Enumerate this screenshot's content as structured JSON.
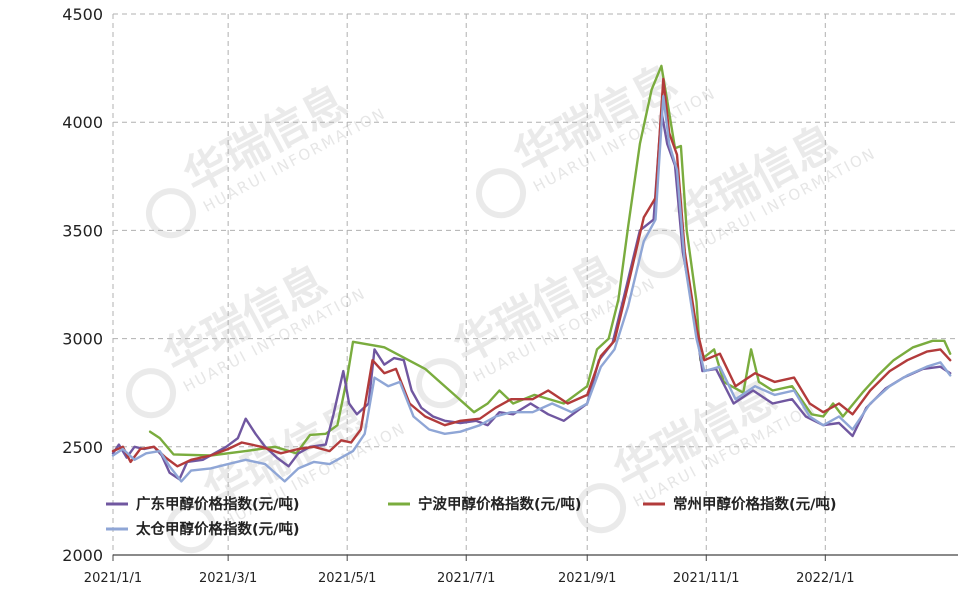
{
  "chart_data": {
    "type": "line",
    "title": "",
    "xlabel": "",
    "ylabel": "",
    "ylim": [
      2000,
      4500
    ],
    "xlim": [
      "2021-01-01",
      "2022-03-10"
    ],
    "yticks": [
      "2000",
      "2500",
      "3000",
      "3500",
      "4000",
      "4500"
    ],
    "xticks": [
      {
        "date": "2021-01-01",
        "label": "2021/1/1"
      },
      {
        "date": "2021-03-01",
        "label": "2021/3/1"
      },
      {
        "date": "2021-05-01",
        "label": "2021/5/1"
      },
      {
        "date": "2021-07-01",
        "label": "2021/7/1"
      },
      {
        "date": "2021-09-01",
        "label": "2021/9/1"
      },
      {
        "date": "2021-11-01",
        "label": "2021/11/1"
      },
      {
        "date": "2022-01-01",
        "label": "2022/1/1"
      }
    ],
    "grid": true,
    "legend_position": "bottom-left",
    "watermark": {
      "main": "华瑞信息",
      "sub": "HUARUI INFORMATION"
    },
    "series": [
      {
        "name": "宁波甲醇价格指数(元/吨)",
        "color": "#7aac3e",
        "points": [
          [
            "2021-01-20",
            2570
          ],
          [
            "2021-01-25",
            2540
          ],
          [
            "2021-02-01",
            2465
          ],
          [
            "2021-02-20",
            2460
          ],
          [
            "2021-03-10",
            2480
          ],
          [
            "2021-03-25",
            2500
          ],
          [
            "2021-04-05",
            2470
          ],
          [
            "2021-04-12",
            2555
          ],
          [
            "2021-04-20",
            2560
          ],
          [
            "2021-04-26",
            2600
          ],
          [
            "2021-05-01",
            2820
          ],
          [
            "2021-05-04",
            2985
          ],
          [
            "2021-05-20",
            2960
          ],
          [
            "2021-06-10",
            2860
          ],
          [
            "2021-06-25",
            2740
          ],
          [
            "2021-07-05",
            2660
          ],
          [
            "2021-07-12",
            2700
          ],
          [
            "2021-07-18",
            2760
          ],
          [
            "2021-07-25",
            2700
          ],
          [
            "2021-08-05",
            2740
          ],
          [
            "2021-08-20",
            2700
          ],
          [
            "2021-09-01",
            2780
          ],
          [
            "2021-09-06",
            2950
          ],
          [
            "2021-09-12",
            3000
          ],
          [
            "2021-09-17",
            3180
          ],
          [
            "2021-09-22",
            3520
          ],
          [
            "2021-09-28",
            3900
          ],
          [
            "2021-10-04",
            4150
          ],
          [
            "2021-10-09",
            4260
          ],
          [
            "2021-10-12",
            4100
          ],
          [
            "2021-10-16",
            3880
          ],
          [
            "2021-10-19",
            3890
          ],
          [
            "2021-10-22",
            3500
          ],
          [
            "2021-10-27",
            3170
          ],
          [
            "2021-10-29",
            2900
          ],
          [
            "2021-11-05",
            2950
          ],
          [
            "2021-11-10",
            2800
          ],
          [
            "2021-11-20",
            2750
          ],
          [
            "2021-11-24",
            2950
          ],
          [
            "2021-11-28",
            2800
          ],
          [
            "2021-12-05",
            2760
          ],
          [
            "2021-12-15",
            2780
          ],
          [
            "2021-12-25",
            2650
          ],
          [
            "2021-12-31",
            2640
          ],
          [
            "2022-01-05",
            2700
          ],
          [
            "2022-01-10",
            2640
          ],
          [
            "2022-01-20",
            2750
          ],
          [
            "2022-01-28",
            2830
          ],
          [
            "2022-02-05",
            2900
          ],
          [
            "2022-02-15",
            2960
          ],
          [
            "2022-02-25",
            2990
          ],
          [
            "2022-03-03",
            2990
          ],
          [
            "2022-03-06",
            2930
          ]
        ]
      },
      {
        "name": "广东甲醇价格指数(元/吨)",
        "color": "#7057a0",
        "points": [
          [
            "2021-01-01",
            2470
          ],
          [
            "2021-01-04",
            2510
          ],
          [
            "2021-01-08",
            2450
          ],
          [
            "2021-01-12",
            2500
          ],
          [
            "2021-01-17",
            2490
          ],
          [
            "2021-01-22",
            2500
          ],
          [
            "2021-01-26",
            2460
          ],
          [
            "2021-01-30",
            2380
          ],
          [
            "2021-02-04",
            2350
          ],
          [
            "2021-02-08",
            2430
          ],
          [
            "2021-02-16",
            2440
          ],
          [
            "2021-02-22",
            2470
          ],
          [
            "2021-02-28",
            2500
          ],
          [
            "2021-03-06",
            2540
          ],
          [
            "2021-03-10",
            2630
          ],
          [
            "2021-03-15",
            2560
          ],
          [
            "2021-03-20",
            2500
          ],
          [
            "2021-03-26",
            2450
          ],
          [
            "2021-04-01",
            2410
          ],
          [
            "2021-04-06",
            2470
          ],
          [
            "2021-04-12",
            2500
          ],
          [
            "2021-04-20",
            2510
          ],
          [
            "2021-04-24",
            2650
          ],
          [
            "2021-04-29",
            2850
          ],
          [
            "2021-05-02",
            2700
          ],
          [
            "2021-05-06",
            2650
          ],
          [
            "2021-05-12",
            2700
          ],
          [
            "2021-05-15",
            2950
          ],
          [
            "2021-05-20",
            2880
          ],
          [
            "2021-05-25",
            2910
          ],
          [
            "2021-05-30",
            2900
          ],
          [
            "2021-06-03",
            2760
          ],
          [
            "2021-06-08",
            2680
          ],
          [
            "2021-06-14",
            2640
          ],
          [
            "2021-06-20",
            2620
          ],
          [
            "2021-06-28",
            2610
          ],
          [
            "2021-07-06",
            2620
          ],
          [
            "2021-07-12",
            2600
          ],
          [
            "2021-07-18",
            2660
          ],
          [
            "2021-07-25",
            2650
          ],
          [
            "2021-08-03",
            2700
          ],
          [
            "2021-08-12",
            2650
          ],
          [
            "2021-08-20",
            2620
          ],
          [
            "2021-09-01",
            2700
          ],
          [
            "2021-09-07",
            2900
          ],
          [
            "2021-09-14",
            2980
          ],
          [
            "2021-09-20",
            3200
          ],
          [
            "2021-09-28",
            3500
          ],
          [
            "2021-10-05",
            3550
          ],
          [
            "2021-10-09",
            4050
          ],
          [
            "2021-10-12",
            3900
          ],
          [
            "2021-10-16",
            3800
          ],
          [
            "2021-10-20",
            3400
          ],
          [
            "2021-10-26",
            3100
          ],
          [
            "2021-10-30",
            2850
          ],
          [
            "2021-11-06",
            2860
          ],
          [
            "2021-11-15",
            2700
          ],
          [
            "2021-11-25",
            2760
          ],
          [
            "2021-12-05",
            2700
          ],
          [
            "2021-12-15",
            2720
          ],
          [
            "2021-12-22",
            2640
          ],
          [
            "2021-12-31",
            2600
          ],
          [
            "2022-01-08",
            2610
          ],
          [
            "2022-01-15",
            2550
          ],
          [
            "2022-01-22",
            2680
          ],
          [
            "2022-02-01",
            2770
          ],
          [
            "2022-02-10",
            2820
          ],
          [
            "2022-02-20",
            2860
          ],
          [
            "2022-03-01",
            2870
          ],
          [
            "2022-03-06",
            2840
          ]
        ]
      },
      {
        "name": "常州甲醇价格指数(元/吨)",
        "color": "#b23b3b",
        "points": [
          [
            "2021-01-01",
            2480
          ],
          [
            "2021-01-06",
            2500
          ],
          [
            "2021-01-10",
            2430
          ],
          [
            "2021-01-15",
            2490
          ],
          [
            "2021-01-22",
            2500
          ],
          [
            "2021-01-28",
            2450
          ],
          [
            "2021-02-03",
            2410
          ],
          [
            "2021-02-10",
            2440
          ],
          [
            "2021-02-20",
            2460
          ],
          [
            "2021-03-01",
            2490
          ],
          [
            "2021-03-08",
            2520
          ],
          [
            "2021-03-18",
            2500
          ],
          [
            "2021-03-28",
            2470
          ],
          [
            "2021-04-06",
            2490
          ],
          [
            "2021-04-14",
            2500
          ],
          [
            "2021-04-22",
            2480
          ],
          [
            "2021-04-28",
            2530
          ],
          [
            "2021-05-03",
            2520
          ],
          [
            "2021-05-08",
            2580
          ],
          [
            "2021-05-14",
            2900
          ],
          [
            "2021-05-20",
            2840
          ],
          [
            "2021-05-26",
            2860
          ],
          [
            "2021-06-02",
            2700
          ],
          [
            "2021-06-10",
            2640
          ],
          [
            "2021-06-20",
            2600
          ],
          [
            "2021-06-28",
            2620
          ],
          [
            "2021-07-08",
            2630
          ],
          [
            "2021-07-16",
            2680
          ],
          [
            "2021-07-24",
            2720
          ],
          [
            "2021-08-04",
            2720
          ],
          [
            "2021-08-12",
            2760
          ],
          [
            "2021-08-22",
            2700
          ],
          [
            "2021-09-01",
            2740
          ],
          [
            "2021-09-08",
            2920
          ],
          [
            "2021-09-15",
            2990
          ],
          [
            "2021-09-22",
            3250
          ],
          [
            "2021-09-30",
            3560
          ],
          [
            "2021-10-06",
            3650
          ],
          [
            "2021-10-10",
            4200
          ],
          [
            "2021-10-13",
            3950
          ],
          [
            "2021-10-17",
            3850
          ],
          [
            "2021-10-21",
            3400
          ],
          [
            "2021-10-27",
            3050
          ],
          [
            "2021-10-31",
            2900
          ],
          [
            "2021-11-08",
            2930
          ],
          [
            "2021-11-16",
            2780
          ],
          [
            "2021-11-26",
            2840
          ],
          [
            "2021-12-06",
            2800
          ],
          [
            "2021-12-16",
            2820
          ],
          [
            "2021-12-24",
            2700
          ],
          [
            "2021-12-31",
            2660
          ],
          [
            "2022-01-08",
            2700
          ],
          [
            "2022-01-15",
            2650
          ],
          [
            "2022-01-24",
            2760
          ],
          [
            "2022-02-03",
            2850
          ],
          [
            "2022-02-12",
            2900
          ],
          [
            "2022-02-22",
            2940
          ],
          [
            "2022-03-01",
            2950
          ],
          [
            "2022-03-06",
            2900
          ]
        ]
      },
      {
        "name": "太仓甲醇价格指数(元/吨)",
        "color": "#8fa6d6",
        "points": [
          [
            "2021-01-01",
            2460
          ],
          [
            "2021-01-06",
            2490
          ],
          [
            "2021-01-12",
            2440
          ],
          [
            "2021-01-18",
            2470
          ],
          [
            "2021-01-25",
            2480
          ],
          [
            "2021-01-30",
            2410
          ],
          [
            "2021-02-05",
            2340
          ],
          [
            "2021-02-10",
            2390
          ],
          [
            "2021-02-20",
            2400
          ],
          [
            "2021-03-01",
            2420
          ],
          [
            "2021-03-10",
            2440
          ],
          [
            "2021-03-20",
            2420
          ],
          [
            "2021-03-30",
            2340
          ],
          [
            "2021-04-06",
            2400
          ],
          [
            "2021-04-14",
            2430
          ],
          [
            "2021-04-22",
            2420
          ],
          [
            "2021-04-28",
            2450
          ],
          [
            "2021-05-04",
            2480
          ],
          [
            "2021-05-10",
            2560
          ],
          [
            "2021-05-15",
            2820
          ],
          [
            "2021-05-22",
            2780
          ],
          [
            "2021-05-28",
            2800
          ],
          [
            "2021-06-04",
            2640
          ],
          [
            "2021-06-12",
            2580
          ],
          [
            "2021-06-20",
            2560
          ],
          [
            "2021-06-28",
            2570
          ],
          [
            "2021-07-08",
            2600
          ],
          [
            "2021-07-16",
            2640
          ],
          [
            "2021-07-24",
            2660
          ],
          [
            "2021-08-04",
            2660
          ],
          [
            "2021-08-14",
            2700
          ],
          [
            "2021-08-24",
            2660
          ],
          [
            "2021-09-01",
            2700
          ],
          [
            "2021-09-08",
            2870
          ],
          [
            "2021-09-15",
            2950
          ],
          [
            "2021-09-22",
            3150
          ],
          [
            "2021-09-30",
            3450
          ],
          [
            "2021-10-06",
            3550
          ],
          [
            "2021-10-10",
            4120
          ],
          [
            "2021-10-13",
            3900
          ],
          [
            "2021-10-17",
            3780
          ],
          [
            "2021-10-21",
            3350
          ],
          [
            "2021-10-27",
            3000
          ],
          [
            "2021-10-31",
            2850
          ],
          [
            "2021-11-08",
            2870
          ],
          [
            "2021-11-16",
            2720
          ],
          [
            "2021-11-26",
            2780
          ],
          [
            "2021-12-06",
            2740
          ],
          [
            "2021-12-16",
            2760
          ],
          [
            "2021-12-24",
            2640
          ],
          [
            "2021-12-31",
            2600
          ],
          [
            "2022-01-08",
            2640
          ],
          [
            "2022-01-15",
            2580
          ],
          [
            "2022-01-24",
            2700
          ],
          [
            "2022-02-03",
            2780
          ],
          [
            "2022-02-12",
            2830
          ],
          [
            "2022-02-22",
            2870
          ],
          [
            "2022-03-01",
            2890
          ],
          [
            "2022-03-06",
            2830
          ]
        ]
      }
    ]
  }
}
